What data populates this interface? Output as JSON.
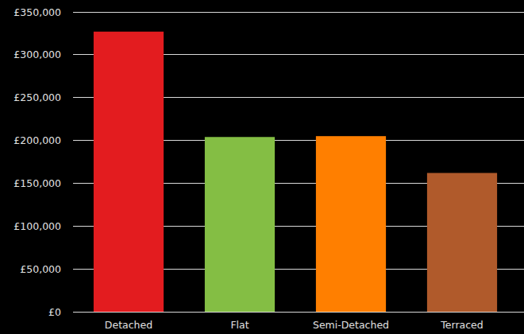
{
  "chart_data": {
    "type": "bar",
    "categories": [
      "Detached",
      "Flat",
      "Semi-Detached",
      "Terraced"
    ],
    "values": [
      327000,
      204000,
      205000,
      162000
    ],
    "colors": [
      "#e31c1f",
      "#84be44",
      "#ff7f00",
      "#b05a2b"
    ],
    "ylim": [
      0,
      350000
    ],
    "yticks": [
      {
        "value": 0,
        "label": "£0"
      },
      {
        "value": 50000,
        "label": "£50,000"
      },
      {
        "value": 100000,
        "label": "£100,000"
      },
      {
        "value": 150000,
        "label": "£150,000"
      },
      {
        "value": 200000,
        "label": "£200,000"
      },
      {
        "value": 250000,
        "label": "£250,000"
      },
      {
        "value": 300000,
        "label": "£300,000"
      },
      {
        "value": 350000,
        "label": "£350,000"
      }
    ],
    "grid": true
  }
}
